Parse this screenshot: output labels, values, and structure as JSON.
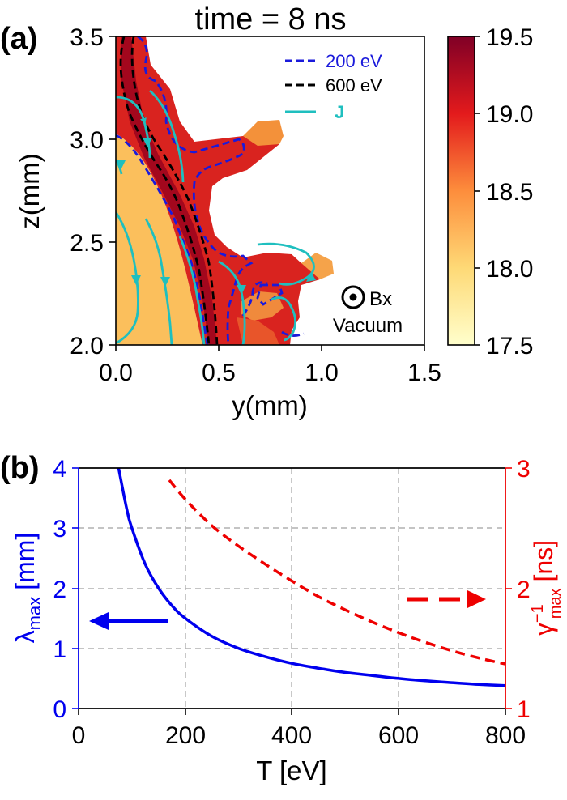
{
  "panel_a": {
    "label": "(a)",
    "title": "time = 8 ns",
    "xlabel": "y(mm)",
    "ylabel": "z(mm)",
    "xticks": [
      "0.0",
      "0.5",
      "1.0",
      "1.5"
    ],
    "yticks": [
      "2.0",
      "2.5",
      "3.0",
      "3.5"
    ],
    "colorbar_ticks": [
      "17.5",
      "18.0",
      "18.5",
      "19.0",
      "19.5"
    ],
    "legend": [
      {
        "label": "200 eV",
        "color": "#1a1adb",
        "style": "dashed"
      },
      {
        "label": "600 eV",
        "color": "#000000",
        "style": "dashed"
      },
      {
        "label": "J",
        "color": "#1fbfbf",
        "style": "solid"
      }
    ],
    "b_field_label": "Bx",
    "vacuum_label": "Vacuum"
  },
  "panel_b": {
    "label": "(b)",
    "xlabel": "T [eV]",
    "ylabel_left_main": "λ",
    "ylabel_left_sub": "max",
    "ylabel_left_unit": "[mm]",
    "ylabel_right_main": "γ",
    "ylabel_right_sup": "−1",
    "ylabel_right_sub": "max",
    "ylabel_right_unit": "[ns]",
    "xticks": [
      "0",
      "200",
      "400",
      "600",
      "800"
    ],
    "yticks_left": [
      "0",
      "1",
      "2",
      "3",
      "4"
    ],
    "yticks_right": [
      "1",
      "2",
      "3"
    ],
    "left_color": "#0000ee",
    "right_color": "#ee0000"
  },
  "chart_data": [
    {
      "type": "heatmap",
      "title": "time = 8 ns",
      "xlabel": "y(mm)",
      "ylabel": "z(mm)",
      "xlim": [
        0.0,
        1.5
      ],
      "ylim": [
        2.0,
        3.5
      ],
      "colorbar": {
        "range": [
          17.5,
          19.5
        ],
        "ticks": [
          17.5,
          18.0,
          18.5,
          19.0,
          19.5
        ]
      },
      "colormap": "YlOrRd",
      "contours": [
        {
          "name": "200 eV",
          "color": "#1a1adb",
          "style": "dashed",
          "x": [
            0.14,
            0.14,
            0.12,
            0.18,
            0.35,
            0.58,
            0.58,
            0.4,
            0.42,
            0.55,
            0.58,
            0.62,
            0.62,
            0.56,
            0.48,
            0.45,
            0.48
          ],
          "y": [
            3.5,
            3.32,
            3.18,
            3.05,
            2.94,
            2.98,
            2.93,
            2.88,
            2.45,
            2.4,
            2.32,
            2.26,
            2.15,
            2.25,
            2.3,
            2.1,
            2.0
          ]
        },
        {
          "name": "600 eV",
          "color": "#000000",
          "style": "dashed",
          "x": [
            0.05,
            0.04,
            0.1,
            0.16,
            0.27,
            0.35,
            0.43,
            0.46
          ],
          "y": [
            3.5,
            3.25,
            3.0,
            2.8,
            2.6,
            2.4,
            2.2,
            2.0
          ]
        }
      ],
      "streamlines": {
        "name": "J",
        "color": "#1fbfbf"
      }
    },
    {
      "type": "line",
      "xlabel": "T [eV]",
      "xlim": [
        0,
        800
      ],
      "grid": true,
      "series": [
        {
          "axis": "left",
          "color": "#0000ee",
          "style": "solid",
          "x": [
            75,
            90,
            100,
            125,
            150,
            175,
            200,
            250,
            300,
            350,
            400,
            450,
            500,
            550,
            600,
            650,
            700,
            750,
            800
          ],
          "y": [
            4.0,
            3.33,
            3.0,
            2.4,
            2.0,
            1.71,
            1.5,
            1.2,
            1.0,
            0.86,
            0.75,
            0.67,
            0.6,
            0.55,
            0.5,
            0.46,
            0.43,
            0.4,
            0.38
          ],
          "ylabel": "λmax [mm]",
          "ylim": [
            0,
            4
          ]
        },
        {
          "axis": "right",
          "color": "#ee0000",
          "style": "dashed",
          "x": [
            170,
            200,
            250,
            300,
            350,
            400,
            450,
            500,
            550,
            600,
            650,
            700,
            750,
            800
          ],
          "y": [
            2.9,
            2.74,
            2.52,
            2.35,
            2.2,
            2.06,
            1.93,
            1.82,
            1.72,
            1.63,
            1.55,
            1.48,
            1.42,
            1.37
          ],
          "ylabel": "γmax−1 [ns]",
          "ylim": [
            1,
            3
          ]
        }
      ],
      "annotations": [
        {
          "type": "arrow",
          "direction": "left",
          "color": "#0000ee",
          "axis": "left",
          "x_from": 165,
          "x_to": 20,
          "y": 1.2
        },
        {
          "type": "arrow",
          "direction": "right",
          "color": "#ee0000",
          "style": "dashed",
          "axis": "right",
          "x_from": 570,
          "x_to": 725,
          "y": 1.75
        }
      ]
    }
  ]
}
